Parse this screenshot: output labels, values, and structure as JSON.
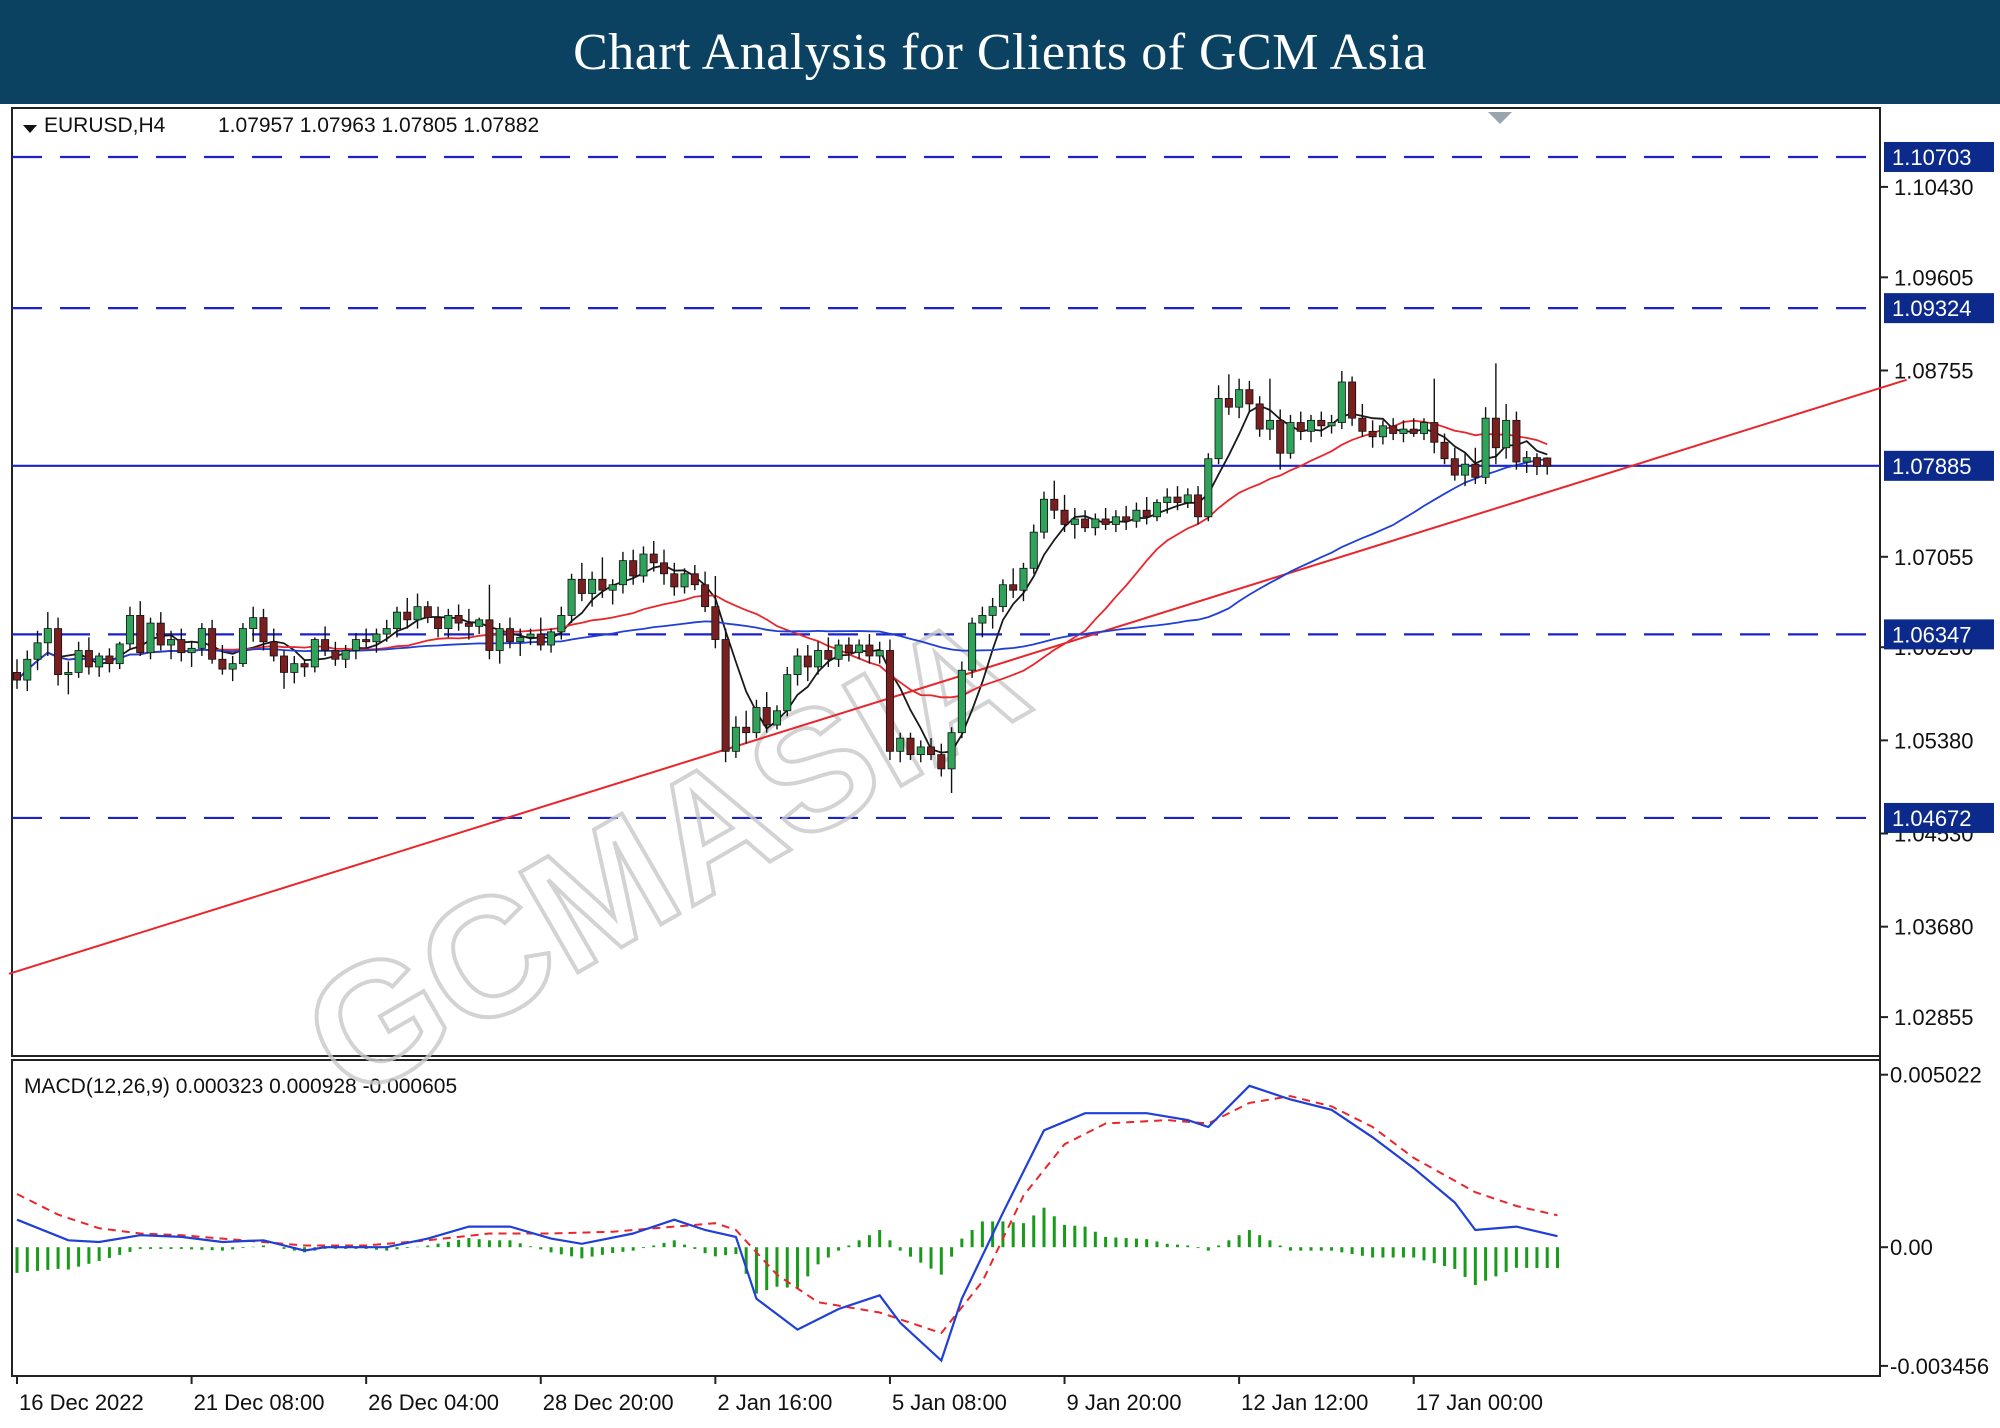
{
  "banner": {
    "title": "Chart Analysis for Clients of GCM Asia"
  },
  "chart_data": {
    "type": "candlestick",
    "symbol_label": "EURUSD,H4",
    "ohlc_label": "1.07957 1.07963 1.07805 1.07882",
    "price_axis": {
      "ylim": [
        1.025,
        1.1115
      ],
      "ticks": [
        "1.10430",
        "1.09605",
        "1.08755",
        "1.07055",
        "1.06230",
        "1.05380",
        "1.04530",
        "1.03680",
        "1.02855"
      ]
    },
    "levels": [
      {
        "value": 1.10703,
        "label": "1.10703",
        "style": "dashed"
      },
      {
        "value": 1.09324,
        "label": "1.09324",
        "style": "dashed"
      },
      {
        "value": 1.07885,
        "label": "1.07885",
        "style": "solid"
      },
      {
        "value": 1.06347,
        "label": "1.06347",
        "style": "dashed"
      },
      {
        "value": 1.04672,
        "label": "1.04672",
        "style": "dashed"
      }
    ],
    "trendline": {
      "color": "#e8262b",
      "from": {
        "bar": 0,
        "price": 1.0325
      },
      "to": {
        "bar": 184,
        "price": 1.0867
      }
    },
    "candle_count": 151,
    "ohlc": [
      [
        1.06,
        1.0612,
        1.0585,
        1.0593
      ],
      [
        1.0593,
        1.062,
        1.0583,
        1.0612
      ],
      [
        1.0612,
        1.0638,
        1.0602,
        1.0627
      ],
      [
        1.0627,
        1.0655,
        1.0615,
        1.064
      ],
      [
        1.064,
        1.065,
        1.0588,
        1.0598
      ],
      [
        1.0598,
        1.061,
        1.058,
        1.06
      ],
      [
        1.06,
        1.0628,
        1.0595,
        1.062
      ],
      [
        1.062,
        1.0632,
        1.0598,
        1.0605
      ],
      [
        1.0605,
        1.0618,
        1.0596,
        1.0615
      ],
      [
        1.0615,
        1.0622,
        1.06,
        1.0608
      ],
      [
        1.0608,
        1.0628,
        1.0603,
        1.0626
      ],
      [
        1.0626,
        1.066,
        1.0622,
        1.0652
      ],
      [
        1.0652,
        1.0665,
        1.0615,
        1.0618
      ],
      [
        1.0618,
        1.065,
        1.0612,
        1.0645
      ],
      [
        1.0645,
        1.0655,
        1.062,
        1.0625
      ],
      [
        1.0625,
        1.0638,
        1.0612,
        1.063
      ],
      [
        1.063,
        1.064,
        1.061,
        1.0618
      ],
      [
        1.0618,
        1.0628,
        1.0605,
        1.0622
      ],
      [
        1.0622,
        1.0645,
        1.0615,
        1.064
      ],
      [
        1.064,
        1.0648,
        1.0608,
        1.0612
      ],
      [
        1.0612,
        1.0625,
        1.0598,
        1.0603
      ],
      [
        1.0603,
        1.0615,
        1.0592,
        1.0608
      ],
      [
        1.0608,
        1.0645,
        1.0605,
        1.064
      ],
      [
        1.064,
        1.066,
        1.0628,
        1.065
      ],
      [
        1.065,
        1.0658,
        1.062,
        1.0628
      ],
      [
        1.0628,
        1.064,
        1.061,
        1.0615
      ],
      [
        1.0615,
        1.062,
        1.0585,
        1.06
      ],
      [
        1.06,
        1.0615,
        1.059,
        1.0608
      ],
      [
        1.0608,
        1.0612,
        1.0596,
        1.0605
      ],
      [
        1.0605,
        1.0632,
        1.06,
        1.063
      ],
      [
        1.063,
        1.0642,
        1.0615,
        1.062
      ],
      [
        1.062,
        1.0628,
        1.0606,
        1.0612
      ],
      [
        1.0612,
        1.0625,
        1.0604,
        1.062
      ],
      [
        1.062,
        1.0636,
        1.0612,
        1.063
      ],
      [
        1.063,
        1.064,
        1.0622,
        1.0628
      ],
      [
        1.0628,
        1.064,
        1.0618,
        1.0635
      ],
      [
        1.0635,
        1.0648,
        1.0628,
        1.064
      ],
      [
        1.064,
        1.066,
        1.0632,
        1.0655
      ],
      [
        1.0655,
        1.0668,
        1.064,
        1.0648
      ],
      [
        1.0648,
        1.0672,
        1.064,
        1.066
      ],
      [
        1.066,
        1.0665,
        1.0645,
        1.065
      ],
      [
        1.065,
        1.066,
        1.0632,
        1.064
      ],
      [
        1.064,
        1.0658,
        1.0632,
        1.0652
      ],
      [
        1.0652,
        1.0662,
        1.0638,
        1.0645
      ],
      [
        1.0645,
        1.0658,
        1.063,
        1.0642
      ],
      [
        1.0642,
        1.065,
        1.0635,
        1.0648
      ],
      [
        1.0648,
        1.068,
        1.0612,
        1.062
      ],
      [
        1.062,
        1.0645,
        1.0608,
        1.064
      ],
      [
        1.064,
        1.065,
        1.0622,
        1.0628
      ],
      [
        1.0628,
        1.064,
        1.0615,
        1.0632
      ],
      [
        1.0632,
        1.064,
        1.0625,
        1.0635
      ],
      [
        1.0635,
        1.065,
        1.062,
        1.0625
      ],
      [
        1.0625,
        1.064,
        1.0618,
        1.0637
      ],
      [
        1.0637,
        1.066,
        1.063,
        1.0652
      ],
      [
        1.0652,
        1.069,
        1.0645,
        1.0685
      ],
      [
        1.0685,
        1.07,
        1.0665,
        1.0672
      ],
      [
        1.0672,
        1.0692,
        1.066,
        1.0685
      ],
      [
        1.0685,
        1.0705,
        1.0668,
        1.0675
      ],
      [
        1.0675,
        1.0685,
        1.0662,
        1.068
      ],
      [
        1.068,
        1.071,
        1.0672,
        1.0702
      ],
      [
        1.0702,
        1.0712,
        1.068,
        1.0688
      ],
      [
        1.0688,
        1.0715,
        1.0682,
        1.0708
      ],
      [
        1.0708,
        1.072,
        1.0692,
        1.07
      ],
      [
        1.07,
        1.0712,
        1.068,
        1.069
      ],
      [
        1.069,
        1.07,
        1.067,
        1.0678
      ],
      [
        1.0678,
        1.0695,
        1.0672,
        1.069
      ],
      [
        1.069,
        1.0698,
        1.0675,
        1.068
      ],
      [
        1.068,
        1.0692,
        1.0655,
        1.066
      ],
      [
        1.066,
        1.0688,
        1.0622,
        1.063
      ],
      [
        1.063,
        1.064,
        1.0518,
        1.0528
      ],
      [
        1.0528,
        1.056,
        1.0522,
        1.055
      ],
      [
        1.055,
        1.0565,
        1.0535,
        1.0545
      ],
      [
        1.0545,
        1.0575,
        1.054,
        1.0568
      ],
      [
        1.0568,
        1.0582,
        1.0545,
        1.0552
      ],
      [
        1.0552,
        1.057,
        1.0548,
        1.0565
      ],
      [
        1.0565,
        1.0605,
        1.056,
        1.0598
      ],
      [
        1.0598,
        1.0622,
        1.0588,
        1.0615
      ],
      [
        1.0615,
        1.0625,
        1.0592,
        1.0605
      ],
      [
        1.0605,
        1.0628,
        1.0598,
        1.062
      ],
      [
        1.062,
        1.0632,
        1.0605,
        1.0612
      ],
      [
        1.0612,
        1.063,
        1.0605,
        1.0625
      ],
      [
        1.0625,
        1.0632,
        1.061,
        1.0618
      ],
      [
        1.0618,
        1.063,
        1.0612,
        1.0625
      ],
      [
        1.0625,
        1.0635,
        1.0608,
        1.0615
      ],
      [
        1.0615,
        1.0628,
        1.0608,
        1.062
      ],
      [
        1.062,
        1.063,
        1.052,
        1.0528
      ],
      [
        1.0528,
        1.0545,
        1.0518,
        1.054
      ],
      [
        1.054,
        1.0545,
        1.052,
        1.0525
      ],
      [
        1.0525,
        1.0538,
        1.0518,
        1.0532
      ],
      [
        1.0532,
        1.054,
        1.052,
        1.0525
      ],
      [
        1.0525,
        1.0535,
        1.0505,
        1.0512
      ],
      [
        1.0512,
        1.055,
        1.049,
        1.0545
      ],
      [
        1.0545,
        1.061,
        1.054,
        1.0602
      ],
      [
        1.0602,
        1.065,
        1.0595,
        1.0645
      ],
      [
        1.0645,
        1.066,
        1.0632,
        1.0652
      ],
      [
        1.0652,
        1.0668,
        1.064,
        1.066
      ],
      [
        1.066,
        1.0685,
        1.0655,
        1.068
      ],
      [
        1.068,
        1.0695,
        1.0668,
        1.0675
      ],
      [
        1.0675,
        1.07,
        1.0665,
        1.0695
      ],
      [
        1.0695,
        1.0735,
        1.069,
        1.0728
      ],
      [
        1.0728,
        1.0765,
        1.0722,
        1.0758
      ],
      [
        1.0758,
        1.0775,
        1.074,
        1.0748
      ],
      [
        1.0748,
        1.0762,
        1.0728,
        1.0735
      ],
      [
        1.0735,
        1.075,
        1.0722,
        1.074
      ],
      [
        1.074,
        1.0748,
        1.0728,
        1.0732
      ],
      [
        1.0732,
        1.0745,
        1.0725,
        1.074
      ],
      [
        1.074,
        1.075,
        1.073,
        1.0735
      ],
      [
        1.0735,
        1.0748,
        1.0728,
        1.0742
      ],
      [
        1.0742,
        1.0752,
        1.073,
        1.0738
      ],
      [
        1.0738,
        1.0755,
        1.0732,
        1.0748
      ],
      [
        1.0748,
        1.076,
        1.0735,
        1.0742
      ],
      [
        1.0742,
        1.0758,
        1.0738,
        1.0755
      ],
      [
        1.0755,
        1.0768,
        1.0745,
        1.076
      ],
      [
        1.076,
        1.077,
        1.0748,
        1.0755
      ],
      [
        1.0755,
        1.0768,
        1.075,
        1.0762
      ],
      [
        1.0762,
        1.077,
        1.0735,
        1.0742
      ],
      [
        1.0742,
        1.08,
        1.0738,
        1.0795
      ],
      [
        1.0795,
        1.0862,
        1.079,
        1.085
      ],
      [
        1.085,
        1.0872,
        1.0835,
        1.0842
      ],
      [
        1.0842,
        1.0868,
        1.0832,
        1.0858
      ],
      [
        1.0858,
        1.0866,
        1.0838,
        1.0845
      ],
      [
        1.0845,
        1.0852,
        1.0815,
        1.0822
      ],
      [
        1.0822,
        1.0868,
        1.0812,
        1.083
      ],
      [
        1.083,
        1.084,
        1.0785,
        1.08
      ],
      [
        1.08,
        1.0835,
        1.0795,
        1.0828
      ],
      [
        1.0828,
        1.0838,
        1.0812,
        1.082
      ],
      [
        1.082,
        1.0835,
        1.081,
        1.083
      ],
      [
        1.083,
        1.0838,
        1.0815,
        1.0825
      ],
      [
        1.0825,
        1.0835,
        1.0818,
        1.0828
      ],
      [
        1.0828,
        1.0875,
        1.0822,
        1.0865
      ],
      [
        1.0865,
        1.087,
        1.0825,
        1.0832
      ],
      [
        1.0832,
        1.0845,
        1.0815,
        1.082
      ],
      [
        1.082,
        1.083,
        1.0805,
        1.0815
      ],
      [
        1.0815,
        1.083,
        1.0808,
        1.0825
      ],
      [
        1.0825,
        1.0832,
        1.0812,
        1.0818
      ],
      [
        1.0818,
        1.083,
        1.081,
        1.0822
      ],
      [
        1.0822,
        1.0832,
        1.0815,
        1.0818
      ],
      [
        1.0818,
        1.0832,
        1.0812,
        1.0828
      ],
      [
        1.0828,
        1.0868,
        1.08,
        1.081
      ],
      [
        1.081,
        1.0818,
        1.079,
        1.0795
      ],
      [
        1.0795,
        1.0805,
        1.0775,
        1.078
      ],
      [
        1.078,
        1.08,
        1.077,
        1.079
      ],
      [
        1.079,
        1.0805,
        1.0772,
        1.0778
      ],
      [
        1.0778,
        1.0842,
        1.0772,
        1.0832
      ],
      [
        1.0832,
        1.0882,
        1.079,
        1.0805
      ],
      [
        1.0805,
        1.0845,
        1.0795,
        1.083
      ],
      [
        1.083,
        1.0838,
        1.0785,
        1.0792
      ],
      [
        1.0792,
        1.0802,
        1.0782,
        1.0796
      ],
      [
        1.0796,
        1.08,
        1.078,
        1.0788
      ],
      [
        1.07957,
        1.07963,
        1.07805,
        1.07882
      ]
    ],
    "moving_averages": [
      {
        "color": "#1a1a1a",
        "period": 5
      },
      {
        "color": "#e8262b",
        "period": 20
      },
      {
        "color": "#1f3fd6",
        "period": 50
      }
    ],
    "x_axis": {
      "labels": [
        {
          "bar": 0,
          "text": "16 Dec 2022"
        },
        {
          "bar": 17,
          "text": "21 Dec 08:00"
        },
        {
          "bar": 34,
          "text": "26 Dec 04:00"
        },
        {
          "bar": 51,
          "text": "28 Dec 20:00"
        },
        {
          "bar": 68,
          "text": "2 Jan 16:00"
        },
        {
          "bar": 85,
          "text": "5 Jan 08:00"
        },
        {
          "bar": 102,
          "text": "9 Jan 20:00"
        },
        {
          "bar": 119,
          "text": "12 Jan 12:00"
        },
        {
          "bar": 136,
          "text": "17 Jan 00:00"
        }
      ]
    },
    "macd": {
      "label": "MACD(12,26,9) 0.000323 0.000928 -0.000605",
      "ylim": [
        -0.00375,
        0.00545
      ],
      "ticks": [
        "0.005022",
        "0.00",
        "-0.003456"
      ],
      "macd_points": [
        [
          0,
          0.0008
        ],
        [
          5,
          0.0002
        ],
        [
          8,
          0.00015
        ],
        [
          12,
          0.00035
        ],
        [
          16,
          0.0003
        ],
        [
          20,
          0.00015
        ],
        [
          24,
          0.0002
        ],
        [
          28,
          -0.0001
        ],
        [
          30,
          0.0
        ],
        [
          36,
          0.0
        ],
        [
          40,
          0.00025
        ],
        [
          44,
          0.0006
        ],
        [
          48,
          0.0006
        ],
        [
          52,
          0.00025
        ],
        [
          55,
          0.0001
        ],
        [
          60,
          0.0004
        ],
        [
          64,
          0.0008
        ],
        [
          67,
          0.0005
        ],
        [
          70,
          0.0003
        ],
        [
          72,
          -0.0015
        ],
        [
          76,
          -0.0024
        ],
        [
          80,
          -0.0018
        ],
        [
          84,
          -0.0014
        ],
        [
          86,
          -0.0022
        ],
        [
          90,
          -0.0033
        ],
        [
          92,
          -0.0015
        ],
        [
          96,
          0.001
        ],
        [
          100,
          0.0034
        ],
        [
          104,
          0.0039
        ],
        [
          110,
          0.0039
        ],
        [
          114,
          0.0037
        ],
        [
          116,
          0.0035
        ],
        [
          120,
          0.0047
        ],
        [
          124,
          0.0043
        ],
        [
          128,
          0.004
        ],
        [
          132,
          0.0032
        ],
        [
          136,
          0.0023
        ],
        [
          140,
          0.0013
        ],
        [
          142,
          0.0005
        ],
        [
          146,
          0.0006
        ],
        [
          150,
          0.00032
        ]
      ],
      "signal_points": [
        [
          0,
          0.00155
        ],
        [
          4,
          0.00095
        ],
        [
          8,
          0.00055
        ],
        [
          12,
          0.0004
        ],
        [
          16,
          0.00035
        ],
        [
          22,
          0.0002
        ],
        [
          28,
          5e-05
        ],
        [
          34,
          5e-05
        ],
        [
          40,
          0.0002
        ],
        [
          46,
          0.0004
        ],
        [
          52,
          0.0004
        ],
        [
          58,
          0.00045
        ],
        [
          64,
          0.0006
        ],
        [
          68,
          0.0007
        ],
        [
          70,
          0.0005
        ],
        [
          74,
          -0.0008
        ],
        [
          78,
          -0.0016
        ],
        [
          84,
          -0.0019
        ],
        [
          90,
          -0.0025
        ],
        [
          94,
          -0.001
        ],
        [
          98,
          0.0015
        ],
        [
          102,
          0.003
        ],
        [
          106,
          0.0036
        ],
        [
          112,
          0.0037
        ],
        [
          116,
          0.0036
        ],
        [
          120,
          0.0042
        ],
        [
          124,
          0.0044
        ],
        [
          128,
          0.0041
        ],
        [
          132,
          0.0035
        ],
        [
          136,
          0.0026
        ],
        [
          142,
          0.0016
        ],
        [
          146,
          0.0012
        ],
        [
          150,
          0.00093
        ]
      ],
      "histogram_color": "#1a9a1a",
      "macd_color": "#1f3fd6",
      "signal_color": "#e8262b"
    },
    "watermark": "GCMASIA"
  }
}
